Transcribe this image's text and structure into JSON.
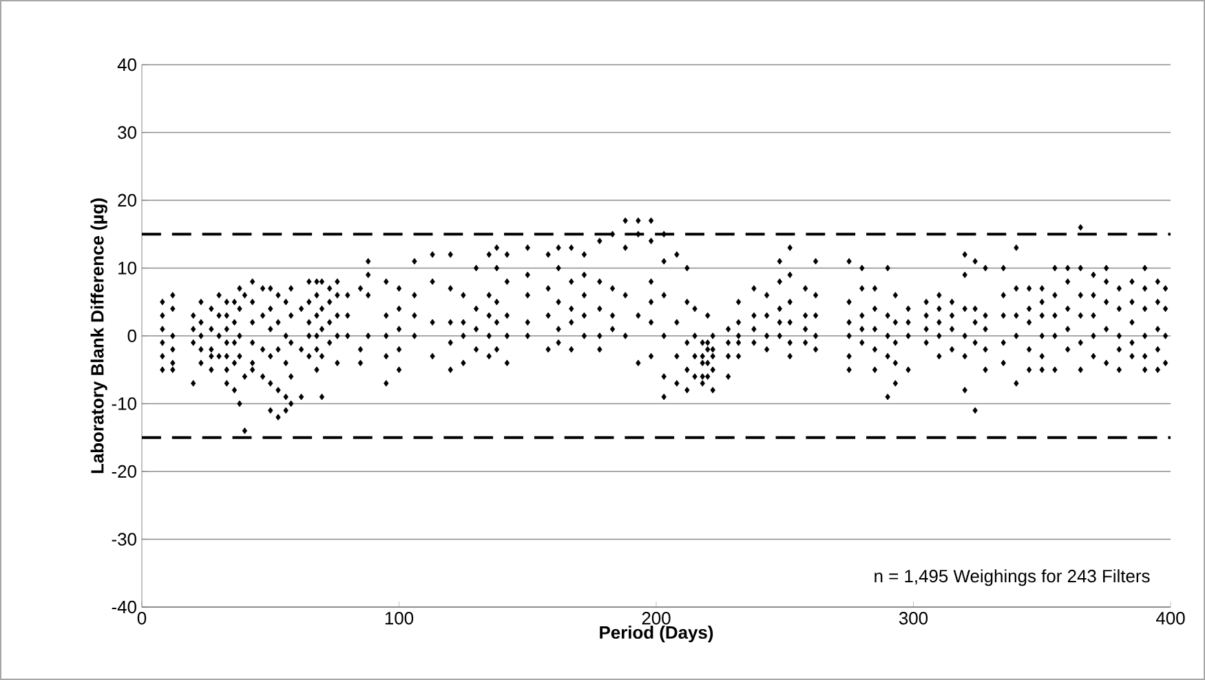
{
  "chart_data": {
    "type": "scatter",
    "xlabel": "Period (Days)",
    "ylabel": "Laboratory Blank Difference (µg)",
    "x": [
      8,
      8,
      8,
      8,
      8,
      8,
      12,
      12,
      12,
      12,
      12,
      12,
      20,
      20,
      20,
      20,
      23,
      23,
      23,
      23,
      23,
      27,
      27,
      27,
      27,
      27,
      30,
      30,
      30,
      30,
      33,
      33,
      33,
      33,
      33,
      33,
      33,
      36,
      36,
      36,
      36,
      36,
      38,
      38,
      38,
      38,
      38,
      40,
      40,
      40,
      43,
      43,
      43,
      43,
      43,
      43,
      47,
      47,
      47,
      47,
      50,
      50,
      50,
      50,
      50,
      50,
      53,
      53,
      53,
      53,
      53,
      56,
      56,
      56,
      56,
      56,
      58,
      58,
      58,
      58,
      58,
      62,
      62,
      62,
      65,
      65,
      65,
      65,
      65,
      68,
      68,
      68,
      68,
      68,
      68,
      70,
      70,
      70,
      70,
      70,
      73,
      73,
      73,
      73,
      76,
      76,
      76,
      76,
      76,
      80,
      80,
      80,
      85,
      85,
      85,
      88,
      88,
      88,
      88,
      95,
      95,
      95,
      95,
      95,
      100,
      100,
      100,
      100,
      100,
      106,
      106,
      106,
      106,
      113,
      113,
      113,
      113,
      120,
      120,
      120,
      120,
      120,
      125,
      125,
      125,
      125,
      130,
      130,
      130,
      130,
      135,
      135,
      135,
      135,
      135,
      138,
      138,
      138,
      138,
      138,
      142,
      142,
      142,
      142,
      142,
      150,
      150,
      150,
      150,
      150,
      158,
      158,
      158,
      158,
      162,
      162,
      162,
      162,
      162,
      167,
      167,
      167,
      167,
      167,
      172,
      172,
      172,
      172,
      172,
      178,
      178,
      178,
      178,
      178,
      183,
      183,
      183,
      183,
      188,
      188,
      188,
      188,
      193,
      193,
      193,
      193,
      198,
      198,
      198,
      198,
      198,
      198,
      203,
      203,
      203,
      203,
      203,
      203,
      208,
      208,
      208,
      208,
      212,
      212,
      212,
      212,
      212,
      215,
      215,
      215,
      215,
      218,
      218,
      218,
      218,
      218,
      220,
      220,
      220,
      220,
      220,
      222,
      222,
      222,
      222,
      222,
      228,
      228,
      228,
      228,
      232,
      232,
      232,
      232,
      232,
      238,
      238,
      238,
      238,
      243,
      243,
      243,
      243,
      248,
      248,
      248,
      248,
      248,
      252,
      252,
      252,
      252,
      252,
      252,
      258,
      258,
      258,
      258,
      262,
      262,
      262,
      262,
      262,
      275,
      275,
      275,
      275,
      275,
      275,
      280,
      280,
      280,
      280,
      280,
      285,
      285,
      285,
      285,
      285,
      290,
      290,
      290,
      290,
      290,
      293,
      293,
      293,
      293,
      293,
      298,
      298,
      298,
      298,
      305,
      305,
      305,
      305,
      310,
      310,
      310,
      310,
      310,
      315,
      315,
      315,
      315,
      320,
      320,
      320,
      320,
      320,
      320,
      324,
      324,
      324,
      324,
      324,
      328,
      328,
      328,
      328,
      328,
      335,
      335,
      335,
      335,
      335,
      340,
      340,
      340,
      340,
      340,
      345,
      345,
      345,
      345,
      345,
      350,
      350,
      350,
      350,
      350,
      350,
      355,
      355,
      355,
      355,
      355,
      360,
      360,
      360,
      360,
      360,
      365,
      365,
      365,
      365,
      365,
      365,
      370,
      370,
      370,
      370,
      370,
      375,
      375,
      375,
      375,
      375,
      380,
      380,
      380,
      380,
      380,
      385,
      385,
      385,
      385,
      385,
      390,
      390,
      390,
      390,
      390,
      390,
      395,
      395,
      395,
      395,
      395,
      398,
      398,
      398,
      398
    ],
    "values": [
      5,
      3,
      1,
      -1,
      -3,
      -5,
      6,
      4,
      0,
      -2,
      -4,
      -5,
      -7,
      3,
      1,
      -1,
      5,
      2,
      0,
      -2,
      -4,
      4,
      1,
      -2,
      -5,
      -3,
      6,
      3,
      0,
      -3,
      5,
      3,
      1,
      -1,
      -3,
      -5,
      -7,
      5,
      2,
      -1,
      -4,
      -8,
      7,
      4,
      0,
      -3,
      -10,
      -14,
      6,
      -6,
      8,
      5,
      2,
      -1,
      -4,
      -5,
      7,
      3,
      -2,
      -6,
      7,
      4,
      1,
      -3,
      -7,
      -11,
      6,
      2,
      -2,
      -8,
      -12,
      5,
      0,
      -4,
      -9,
      -11,
      7,
      3,
      -1,
      -6,
      -10,
      4,
      -2,
      -9,
      8,
      5,
      2,
      0,
      -3,
      8,
      6,
      3,
      0,
      -2,
      -5,
      8,
      4,
      1,
      -3,
      -9,
      7,
      5,
      2,
      -1,
      8,
      6,
      3,
      0,
      -4,
      6,
      3,
      0,
      7,
      -2,
      -4,
      11,
      9,
      6,
      0,
      8,
      3,
      0,
      -3,
      -7,
      7,
      4,
      1,
      -2,
      -5,
      11,
      6,
      3,
      0,
      12,
      8,
      2,
      -3,
      12,
      7,
      2,
      -1,
      -5,
      6,
      2,
      0,
      -4,
      10,
      4,
      1,
      -2,
      12,
      6,
      3,
      0,
      -3,
      13,
      10,
      5,
      2,
      -2,
      12,
      8,
      3,
      0,
      -4,
      13,
      9,
      6,
      2,
      0,
      12,
      7,
      3,
      -2,
      13,
      10,
      5,
      1,
      -1,
      13,
      8,
      4,
      2,
      -2,
      12,
      9,
      6,
      3,
      0,
      14,
      8,
      4,
      0,
      -2,
      15,
      7,
      3,
      1,
      17,
      13,
      6,
      0,
      17,
      15,
      3,
      -4,
      17,
      14,
      8,
      5,
      2,
      -3,
      15,
      11,
      6,
      0,
      -6,
      -9,
      12,
      2,
      -3,
      -7,
      10,
      5,
      -1,
      -5,
      -8,
      4,
      0,
      -3,
      -6,
      -1,
      -3,
      -4,
      -6,
      -7,
      3,
      -1,
      -2,
      -4,
      -6,
      0,
      -2,
      -3,
      -5,
      -8,
      -1,
      1,
      -3,
      -6,
      5,
      2,
      0,
      -1,
      -3,
      7,
      3,
      1,
      -1,
      6,
      3,
      0,
      -2,
      11,
      8,
      4,
      2,
      0,
      13,
      9,
      5,
      2,
      -1,
      -3,
      7,
      3,
      1,
      -1,
      11,
      6,
      3,
      0,
      -2,
      11,
      5,
      2,
      0,
      -3,
      -5,
      10,
      7,
      3,
      1,
      -1,
      7,
      4,
      1,
      -2,
      -5,
      10,
      3,
      0,
      -3,
      -9,
      6,
      2,
      -1,
      -4,
      -7,
      4,
      2,
      0,
      -5,
      5,
      3,
      1,
      -1,
      6,
      4,
      2,
      0,
      -3,
      5,
      3,
      1,
      -2,
      12,
      9,
      4,
      0,
      -3,
      -8,
      11,
      4,
      2,
      -1,
      -11,
      10,
      3,
      1,
      -2,
      -5,
      10,
      6,
      3,
      -1,
      -4,
      13,
      7,
      3,
      0,
      -7,
      7,
      4,
      2,
      -2,
      -5,
      7,
      5,
      3,
      0,
      -3,
      -5,
      10,
      6,
      3,
      0,
      -5,
      10,
      8,
      4,
      1,
      -2,
      16,
      10,
      6,
      3,
      -1,
      -5,
      9,
      6,
      3,
      0,
      -3,
      10,
      8,
      5,
      1,
      -4,
      7,
      4,
      0,
      -2,
      -5,
      8,
      5,
      2,
      -1,
      -3,
      10,
      7,
      4,
      0,
      -3,
      -5,
      8,
      5,
      1,
      -2,
      -5,
      7,
      4,
      0,
      -4
    ],
    "color": "#000000",
    "marker": "diamond",
    "xlim": [
      0,
      400
    ],
    "ylim": [
      -40,
      40
    ],
    "xticks": [
      0,
      100,
      200,
      300,
      400
    ],
    "yticks": [
      -40,
      -30,
      -20,
      -10,
      0,
      10,
      20,
      30,
      40
    ],
    "grid": "y",
    "ref_lines": [
      {
        "axis": "y",
        "value": 15,
        "line_style": "dashed",
        "color": "#000000"
      },
      {
        "axis": "y",
        "value": -15,
        "line_style": "dashed",
        "color": "#000000"
      }
    ],
    "annotations": [
      "n = 1,495 Weighings for 243 Filters"
    ]
  }
}
